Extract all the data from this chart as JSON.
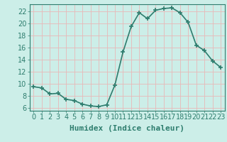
{
  "x": [
    0,
    1,
    2,
    3,
    4,
    5,
    6,
    7,
    8,
    9,
    10,
    11,
    12,
    13,
    14,
    15,
    16,
    17,
    18,
    19,
    20,
    21,
    22,
    23
  ],
  "y": [
    9.5,
    9.3,
    8.3,
    8.4,
    7.4,
    7.2,
    6.6,
    6.3,
    6.2,
    6.5,
    9.8,
    15.3,
    19.5,
    21.8,
    20.8,
    22.2,
    22.5,
    22.6,
    21.8,
    20.2,
    16.4,
    15.5,
    13.8,
    12.7
  ],
  "xlabel": "Humidex (Indice chaleur)",
  "ylim": [
    5.5,
    23.2
  ],
  "xlim": [
    -0.5,
    23.5
  ],
  "yticks": [
    6,
    8,
    10,
    12,
    14,
    16,
    18,
    20,
    22
  ],
  "xticks": [
    0,
    1,
    2,
    3,
    4,
    5,
    6,
    7,
    8,
    9,
    10,
    11,
    12,
    13,
    14,
    15,
    16,
    17,
    18,
    19,
    20,
    21,
    22,
    23
  ],
  "line_color": "#2e7d6e",
  "marker": "+",
  "marker_size": 5,
  "marker_lw": 1.2,
  "line_width": 1.2,
  "bg_color": "#cceee8",
  "grid_color_major": "#e8b8b8",
  "grid_color_minor": "#e8b8b8",
  "axis_color": "#2e7d6e",
  "tick_color": "#2e7d6e",
  "xlabel_fontsize": 8,
  "tick_fontsize": 7,
  "xlabel_fontweight": "bold"
}
